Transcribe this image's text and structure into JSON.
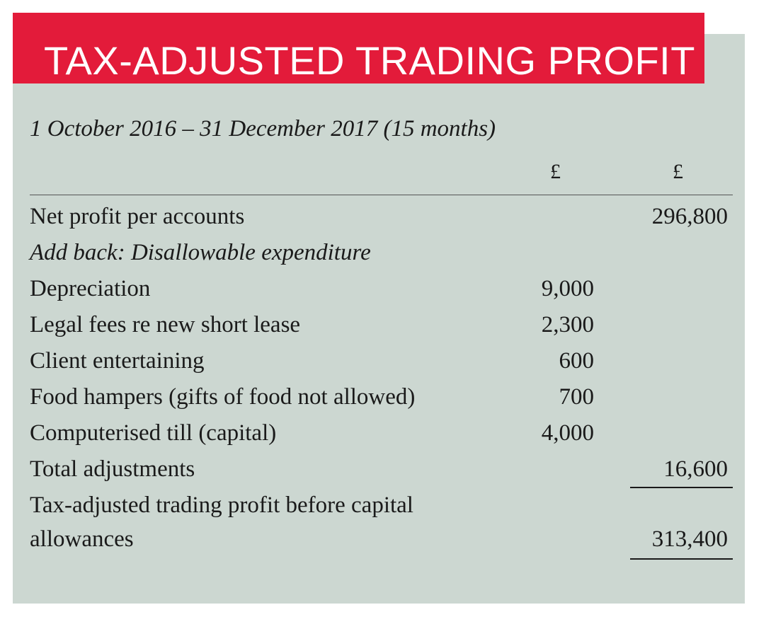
{
  "title": "TAX-ADJUSTED TRADING PROFIT",
  "period": "1 October 2016 – 31 December 2017 (15 months)",
  "columns": [
    "£",
    "£"
  ],
  "rows": [
    {
      "label": "Net profit per accounts",
      "col1": "",
      "col2": "296,800"
    },
    {
      "label": "Add back: Disallowable expenditure",
      "col1": "",
      "col2": ""
    },
    {
      "label": "Depreciation",
      "col1": "9,000",
      "col2": ""
    },
    {
      "label": "Legal fees re new short lease",
      "col1": "2,300",
      "col2": ""
    },
    {
      "label": "Client entertaining",
      "col1": "600",
      "col2": ""
    },
    {
      "label": "Food hampers (gifts of food not allowed)",
      "col1": "700",
      "col2": ""
    },
    {
      "label": "Computerised till (capital)",
      "col1": "4,000",
      "col2": ""
    },
    {
      "label": "Total adjustments",
      "col1": "",
      "col2": "16,600"
    }
  ],
  "final_row": {
    "label_line1": "Tax-adjusted trading profit before capital",
    "label_line2": "allowances",
    "col2": "313,400"
  },
  "colors": {
    "title_background": "#e31b3a",
    "panel_background": "#ccd7d1",
    "title_text": "#ffffff",
    "body_text": "#1a1a1a"
  }
}
